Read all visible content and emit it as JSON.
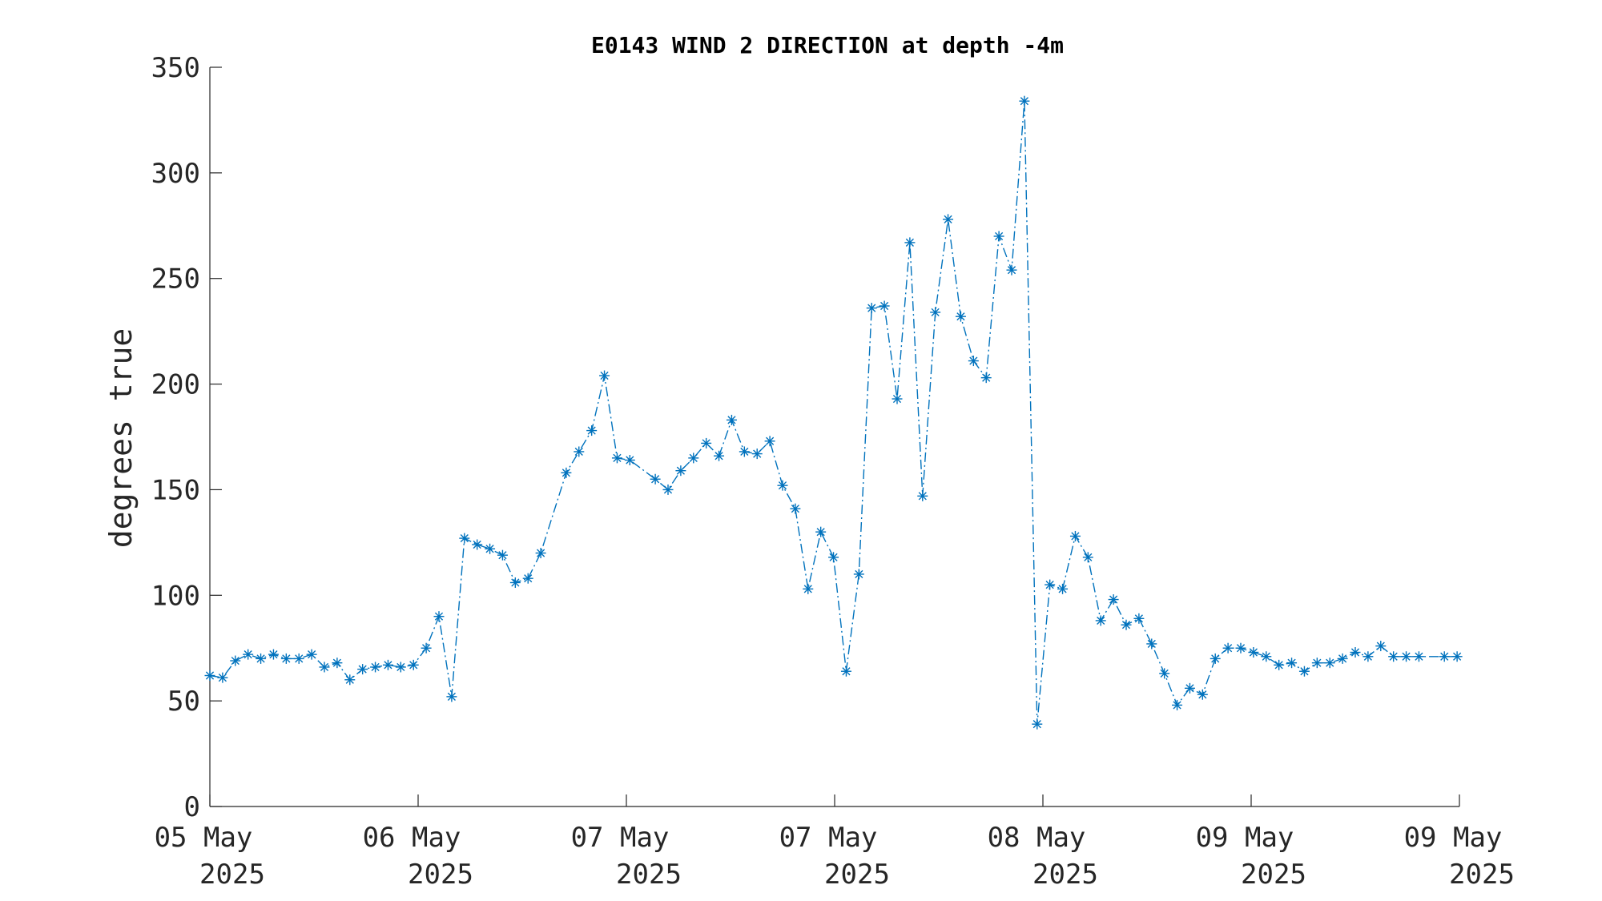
{
  "chart_data": {
    "type": "line",
    "title": "E0143 WIND 2 DIRECTION at depth -4m",
    "xlabel": "",
    "ylabel": "degrees true",
    "ylim": [
      0,
      350
    ],
    "yticks": [
      "0",
      "50",
      "100",
      "150",
      "200",
      "250",
      "300",
      "350"
    ],
    "xlim_hours": [
      0,
      108
    ],
    "xticks": [
      {
        "line1": "05 May",
        "line2": "2025"
      },
      {
        "line1": "06 May",
        "line2": "2025"
      },
      {
        "line1": "07 May",
        "line2": "2025"
      },
      {
        "line1": "07 May",
        "line2": "2025"
      },
      {
        "line1": "08 May",
        "line2": "2025"
      },
      {
        "line1": "09 May",
        "line2": "2025"
      },
      {
        "line1": "09 May",
        "line2": "2025"
      }
    ],
    "grid": false,
    "marker": "asterisk",
    "line_style": "dash-dot",
    "color": "#0072BD",
    "series": [
      {
        "x": [
          0,
          1.1,
          2.2,
          3.3,
          4.4,
          5.5,
          6.6,
          7.7,
          8.8,
          9.9,
          11.0,
          12.1,
          13.2,
          14.3,
          15.4,
          16.5,
          17.6,
          18.7,
          19.8,
          20.9,
          22.0,
          23.1,
          24.2,
          25.3,
          26.4,
          27.5,
          28.6,
          30.8,
          31.9,
          33.0,
          34.1,
          35.2,
          36.3,
          38.5,
          39.6,
          40.7,
          41.8,
          42.9,
          44.0,
          45.1,
          46.2,
          47.3,
          48.4,
          49.5,
          50.6,
          51.7,
          52.8,
          53.9,
          55.0,
          56.1,
          57.2,
          58.3,
          59.4,
          60.5,
          61.6,
          62.7,
          63.8,
          64.9,
          66.0,
          67.1,
          68.2,
          69.3,
          70.4,
          71.5,
          72.6,
          73.7,
          74.8,
          75.9,
          77.0,
          78.1,
          79.2,
          80.3,
          81.4,
          82.5,
          83.6,
          84.7,
          85.8,
          86.9,
          88.0,
          89.1,
          90.2,
          91.3,
          92.4,
          93.5,
          94.6,
          95.7,
          96.8,
          97.9,
          99.0,
          100.1,
          101.2,
          102.3,
          103.4,
          104.5,
          106.7,
          107.8
        ],
        "values": [
          62,
          61,
          69,
          72,
          70,
          72,
          70,
          70,
          72,
          66,
          68,
          60,
          65,
          66,
          67,
          66,
          67,
          75,
          90,
          52,
          127,
          124,
          122,
          119,
          106,
          108,
          120,
          158,
          168,
          178,
          204,
          165,
          164,
          155,
          150,
          159,
          165,
          172,
          166,
          183,
          168,
          167,
          173,
          152,
          141,
          103,
          130,
          118,
          64,
          110,
          236,
          237,
          193,
          267,
          147,
          234,
          278,
          232,
          211,
          203,
          270,
          254,
          334,
          39,
          105,
          103,
          128,
          118,
          88,
          98,
          86,
          89,
          77,
          63,
          48,
          56,
          53,
          70,
          75,
          75,
          73,
          71,
          67,
          68,
          64,
          68,
          68,
          70,
          73,
          71,
          76,
          71,
          71,
          71,
          71,
          71
        ]
      }
    ]
  }
}
